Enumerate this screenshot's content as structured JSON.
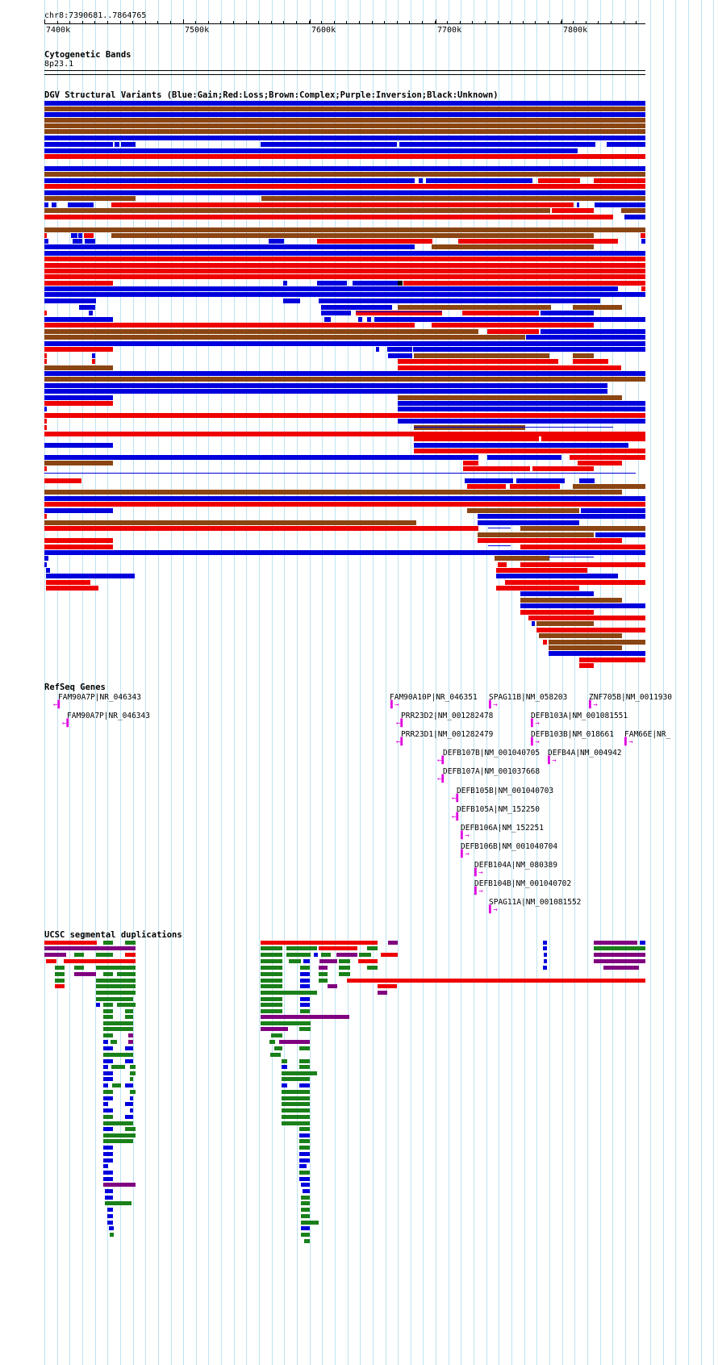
{
  "ruler": {
    "position_label": "chr8:7390681..7864765",
    "tick_labels": [
      "7400k",
      "7500k",
      "7600k",
      "7700k",
      "7800k"
    ]
  },
  "tracks": {
    "cytoband": {
      "title": "Cytogenetic Bands",
      "band": "8p23.1"
    },
    "dgv": {
      "title": "DGV Structural Variants (Blue:Gain;Red:Loss;Brown:Complex;Purple:Inversion;Black:Unknown)"
    },
    "refseq": {
      "title": "RefSeq Genes",
      "genes": [
        {
          "label": "FAM90A7P|NR_046343",
          "strand": "-"
        },
        {
          "label": "FAM90A7P|NR_046343",
          "strand": "-"
        },
        {
          "label": "FAM90A10P|NR_046351",
          "strand": "+"
        },
        {
          "label": "SPAG11B|NM_058203",
          "strand": "+"
        },
        {
          "label": "ZNF705B|NM_0011930",
          "strand": "+"
        },
        {
          "label": "PRR23D2|NM_001282478",
          "strand": "-"
        },
        {
          "label": "DEFB103A|NM_001081551",
          "strand": "+"
        },
        {
          "label": "PRR23D1|NM_001282479",
          "strand": "-"
        },
        {
          "label": "DEFB103B|NM_018661",
          "strand": "+"
        },
        {
          "label": "FAM66E|NR_",
          "strand": "+"
        },
        {
          "label": "DEFB107B|NM_001040705",
          "strand": "-"
        },
        {
          "label": "DEFB4A|NM_004942",
          "strand": "+"
        },
        {
          "label": "DEFB107A|NM_001037668",
          "strand": "-"
        },
        {
          "label": "DEFB105B|NM_001040703",
          "strand": "-"
        },
        {
          "label": "DEFB105A|NM_152250",
          "strand": "-"
        },
        {
          "label": "DEFB106A|NM_152251",
          "strand": "+"
        },
        {
          "label": "DEFB106B|NM_001040704",
          "strand": "+"
        },
        {
          "label": "DEFB104A|NM_080389",
          "strand": "+"
        },
        {
          "label": "DEFB104B|NM_001040702",
          "strand": "+"
        },
        {
          "label": "SPAG11A|NM_001081552",
          "strand": "+"
        }
      ]
    },
    "segdups": {
      "title": "UCSC segmental duplications"
    }
  },
  "colors": {
    "gain": "#0000dd",
    "loss": "#ee0000",
    "complex": "#8b4513",
    "inversion": "#800080",
    "unknown": "#000000",
    "gene": "#e000e0",
    "segdup_green": "#1a801a",
    "gridline": "#bde3f3"
  }
}
